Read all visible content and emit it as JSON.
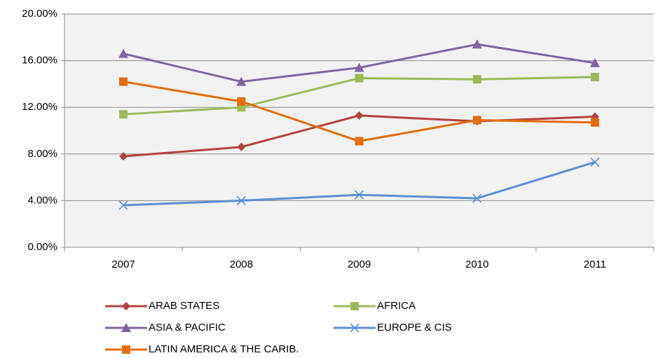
{
  "chart_data": {
    "type": "line",
    "categories": [
      "2007",
      "2008",
      "2009",
      "2010",
      "2011"
    ],
    "series": [
      {
        "name": "ARAB STATES",
        "color": "#b5413c",
        "marker": "diamond",
        "values": [
          7.8,
          8.6,
          11.3,
          10.8,
          11.2
        ]
      },
      {
        "name": "AFRICA",
        "color": "#9bbb59",
        "marker": "square",
        "values": [
          11.4,
          12.0,
          14.5,
          14.4,
          14.6
        ]
      },
      {
        "name": "ASIA & PACIFIC",
        "color": "#8064a2",
        "marker": "triangle",
        "values": [
          16.6,
          14.2,
          15.4,
          17.4,
          15.8
        ]
      },
      {
        "name": "EUROPE &  CIS",
        "color": "#5b8fd4",
        "marker": "x",
        "values": [
          3.6,
          4.0,
          4.5,
          4.2,
          7.3
        ]
      },
      {
        "name": "LATIN AMERICA & THE CARIB.",
        "color": "#e46c0a",
        "marker": "square",
        "values": [
          14.2,
          12.5,
          9.1,
          10.9,
          10.7
        ]
      }
    ],
    "ylim": [
      0,
      20
    ],
    "yticks": [
      {
        "value": 0,
        "label": "0.00%"
      },
      {
        "value": 4,
        "label": "4.00%"
      },
      {
        "value": 8,
        "label": "8.00%"
      },
      {
        "value": 12,
        "label": "12.00%"
      },
      {
        "value": 16,
        "label": "16.00%"
      },
      {
        "value": 20,
        "label": "20.00%"
      }
    ],
    "grid": true,
    "legend": "bottom"
  }
}
